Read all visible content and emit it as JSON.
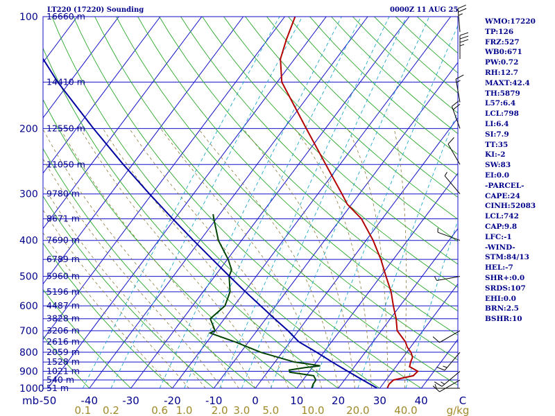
{
  "header": {
    "station": "LT220 (17220) Sounding",
    "time": "0000Z 11 AUG 25"
  },
  "indices": [
    "WMO:17220",
    "TP:126",
    "FRZ:527",
    "WB0:671",
    "PW:0.72",
    "RH:12.7",
    "MAXT:42.4",
    "TH:5879",
    "L57:6.4",
    "LCL:798",
    "LI:6.4",
    "SI:7.9",
    "TT:35",
    "KI:-2",
    "SW:83",
    "EI:0.0",
    "-PARCEL-",
    "CAPE:24",
    "CINH:52083",
    "LCL:742",
    "CAP:9.8",
    "LFC:-1",
    "-WIND-",
    "STM:84/13",
    "HEL:-7",
    "SHR+:0.0",
    "SRDS:107",
    "EHI:0.0",
    "BRN:2.5",
    "BSHR:10"
  ],
  "chart_data": {
    "type": "line",
    "title": "LT220 (17220) Sounding",
    "skew_t_log_p": true,
    "x_axis": {
      "label": "",
      "range": [
        -50,
        50
      ],
      "ticks": [
        -50,
        -40,
        -30,
        -20,
        -10,
        0,
        10,
        20,
        30,
        40,
        50
      ],
      "tick_labels": [
        "-50",
        "-40",
        "-30",
        "-20",
        "-10",
        "0",
        "10",
        "20",
        "30",
        "40",
        "C"
      ]
    },
    "y_axis": {
      "unit_label": "mb",
      "scale": "log",
      "range": [
        1000,
        100
      ],
      "ticks": [
        100,
        200,
        300,
        400,
        500,
        600,
        700,
        800,
        900,
        1000
      ]
    },
    "height_labels": [
      {
        "p": 100,
        "text": "16660 m"
      },
      {
        "p": 150,
        "text": "14410 m"
      },
      {
        "p": 200,
        "text": "12550 m"
      },
      {
        "p": 250,
        "text": "11050 m"
      },
      {
        "p": 300,
        "text": "9780 m"
      },
      {
        "p": 350,
        "text": "8671 m"
      },
      {
        "p": 400,
        "text": "7690 m"
      },
      {
        "p": 450,
        "text": "6789 m"
      },
      {
        "p": 500,
        "text": "5960 m"
      },
      {
        "p": 550,
        "text": "5196 m"
      },
      {
        "p": 600,
        "text": "4487 m"
      },
      {
        "p": 650,
        "text": "3828 m"
      },
      {
        "p": 700,
        "text": "3206 m"
      },
      {
        "p": 750,
        "text": "2616 m"
      },
      {
        "p": 800,
        "text": "2059 m"
      },
      {
        "p": 850,
        "text": "1528 m"
      },
      {
        "p": 900,
        "text": "1021 m"
      },
      {
        "p": 950,
        "text": "540 m"
      },
      {
        "p": 1000,
        "text": "51 m"
      }
    ],
    "mixing_ratio_labels": [
      "0.1",
      "0.2",
      "0.6",
      "1.0",
      "2.0",
      "3.0",
      "5.0",
      "10.0",
      "20.0",
      "40.0"
    ],
    "mixing_ratio_unit": "g/kg",
    "series": [
      {
        "name": "",
        "role": "temperature",
        "color": "#b40000",
        "points": [
          [
            1000,
            31.8
          ],
          [
            975,
            31.5
          ],
          [
            950,
            31.8
          ],
          [
            925,
            35.8
          ],
          [
            900,
            36.1
          ],
          [
            875,
            33.3
          ],
          [
            850,
            32.7
          ],
          [
            825,
            32.3
          ],
          [
            800,
            31.0
          ],
          [
            775,
            29.2
          ],
          [
            750,
            27.8
          ],
          [
            700,
            23.8
          ],
          [
            650,
            21.4
          ],
          [
            600,
            18.4
          ],
          [
            550,
            15.3
          ],
          [
            500,
            11.3
          ],
          [
            450,
            7.0
          ],
          [
            400,
            1.7
          ],
          [
            350,
            -5.0
          ],
          [
            320,
            -11.0
          ],
          [
            300,
            -14.2
          ],
          [
            250,
            -23.4
          ],
          [
            200,
            -34.6
          ],
          [
            150,
            -48.9
          ],
          [
            130,
            -53.4
          ],
          [
            115,
            -55.5
          ],
          [
            100,
            -57.5
          ]
        ]
      },
      {
        "name": "",
        "role": "dewpoint",
        "color": "#004400",
        "points": [
          [
            1000,
            13.6
          ],
          [
            975,
            13.2
          ],
          [
            950,
            13.1
          ],
          [
            925,
            11.8
          ],
          [
            905,
            5.4
          ],
          [
            893,
            4.9
          ],
          [
            880,
            8.2
          ],
          [
            870,
            11.6
          ],
          [
            860,
            8.3
          ],
          [
            850,
            4.7
          ],
          [
            800,
            -5.2
          ],
          [
            750,
            -13.3
          ],
          [
            710,
            -20.9
          ],
          [
            700,
            -20.1
          ],
          [
            650,
            -23.4
          ],
          [
            600,
            -22.2
          ],
          [
            550,
            -23.5
          ],
          [
            500,
            -26.5
          ],
          [
            480,
            -27.1
          ],
          [
            450,
            -29.8
          ],
          [
            400,
            -35.6
          ],
          [
            350,
            -40.6
          ],
          [
            340,
            -41.6
          ]
        ]
      },
      {
        "name": "",
        "role": "parcel",
        "color": "#0000a0",
        "points": [
          [
            1000,
            29.4
          ],
          [
            950,
            24.4
          ],
          [
            900,
            19.2
          ],
          [
            850,
            13.8
          ],
          [
            800,
            8.3
          ],
          [
            750,
            2.1
          ],
          [
            700,
            -2.5
          ],
          [
            650,
            -7.9
          ],
          [
            600,
            -13.6
          ],
          [
            550,
            -19.8
          ],
          [
            500,
            -26.4
          ],
          [
            450,
            -33.6
          ],
          [
            400,
            -41.6
          ],
          [
            350,
            -50.5
          ],
          [
            300,
            -60.6
          ],
          [
            250,
            -72.2
          ],
          [
            200,
            -85.9
          ],
          [
            150,
            -102.9
          ],
          [
            120,
            -114.9
          ],
          [
            110,
            -119.3
          ]
        ]
      }
    ],
    "wind_barbs": [
      {
        "p": 1000,
        "dir": 270,
        "spd": 5
      },
      {
        "p": 950,
        "dir": 240,
        "spd": 10
      },
      {
        "p": 900,
        "dir": 230,
        "spd": 15
      },
      {
        "p": 800,
        "dir": 220,
        "spd": 15
      },
      {
        "p": 700,
        "dir": 240,
        "spd": 10
      },
      {
        "p": 500,
        "dir": 260,
        "spd": 5
      },
      {
        "p": 400,
        "dir": 290,
        "spd": 5
      },
      {
        "p": 300,
        "dir": 320,
        "spd": 5
      },
      {
        "p": 250,
        "dir": 330,
        "spd": 10
      },
      {
        "p": 200,
        "dir": 340,
        "spd": 20
      },
      {
        "p": 170,
        "dir": 350,
        "spd": 15
      },
      {
        "p": 130,
        "dir": 0,
        "spd": 35
      },
      {
        "p": 110,
        "dir": 355,
        "spd": 25
      }
    ]
  }
}
